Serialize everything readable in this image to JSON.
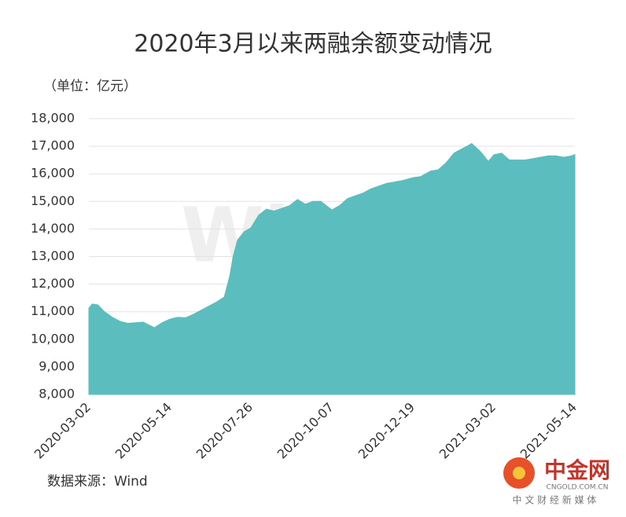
{
  "chart_data": {
    "type": "area",
    "title": "2020年3月以来两融余额变动情况",
    "unit_label": "（单位：亿元）",
    "source": "数据来源：Wind",
    "watermark": "Win.d",
    "logo": {
      "name": "中金网",
      "domain": "CNGOLD.COM.CN",
      "slogan": "中 文 财 经 新 媒 体"
    },
    "color": "#5bbdbd",
    "grid": true,
    "x": [
      "2020-03-02",
      "2020-03-05",
      "2020-03-10",
      "2020-03-16",
      "2020-03-23",
      "2020-03-30",
      "2020-04-06",
      "2020-04-13",
      "2020-04-20",
      "2020-04-30",
      "2020-05-07",
      "2020-05-14",
      "2020-05-21",
      "2020-05-28",
      "2020-06-04",
      "2020-06-11",
      "2020-06-18",
      "2020-06-25",
      "2020-07-02",
      "2020-07-07",
      "2020-07-10",
      "2020-07-14",
      "2020-07-20",
      "2020-07-26",
      "2020-08-02",
      "2020-08-09",
      "2020-08-16",
      "2020-08-23",
      "2020-08-30",
      "2020-09-06",
      "2020-09-13",
      "2020-09-20",
      "2020-09-27",
      "2020-10-07",
      "2020-10-14",
      "2020-10-21",
      "2020-10-28",
      "2020-11-04",
      "2020-11-11",
      "2020-11-18",
      "2020-11-25",
      "2020-12-02",
      "2020-12-09",
      "2020-12-19",
      "2020-12-26",
      "2021-01-04",
      "2021-01-11",
      "2021-01-18",
      "2021-01-25",
      "2021-02-01",
      "2021-02-08",
      "2021-02-10",
      "2021-02-18",
      "2021-02-25",
      "2021-03-02",
      "2021-03-09",
      "2021-03-16",
      "2021-03-23",
      "2021-03-30",
      "2021-04-06",
      "2021-04-13",
      "2021-04-20",
      "2021-04-27",
      "2021-05-04",
      "2021-05-11",
      "2021-05-14"
    ],
    "values": [
      11130,
      11280,
      11250,
      11000,
      10800,
      10650,
      10580,
      10600,
      10620,
      10420,
      10600,
      10730,
      10800,
      10780,
      10900,
      11050,
      11200,
      11350,
      11530,
      12300,
      13000,
      13600,
      13900,
      14040,
      14500,
      14720,
      14650,
      14750,
      14850,
      15070,
      14900,
      15000,
      15000,
      14690,
      14850,
      15100,
      15200,
      15300,
      15450,
      15550,
      15650,
      15700,
      15750,
      15860,
      15900,
      16100,
      16150,
      16400,
      16750,
      16900,
      17050,
      17100,
      16800,
      16450,
      16690,
      16750,
      16500,
      16500,
      16500,
      16550,
      16600,
      16650,
      16650,
      16600,
      16650,
      16700
    ],
    "xlim": [
      "2020-03-02",
      "2021-05-14"
    ],
    "xticks": [
      "2020-03-02",
      "2020-05-14",
      "2020-07-26",
      "2020-10-07",
      "2020-12-19",
      "2021-03-02",
      "2021-05-14"
    ],
    "ylim": [
      8000,
      18000
    ],
    "yticks": [
      {
        "value": 8000,
        "label": "8,000"
      },
      {
        "value": 9000,
        "label": "9,000"
      },
      {
        "value": 10000,
        "label": "10,000"
      },
      {
        "value": 11000,
        "label": "11,000"
      },
      {
        "value": 12000,
        "label": "12,000"
      },
      {
        "value": 13000,
        "label": "13,000"
      },
      {
        "value": 14000,
        "label": "14,000"
      },
      {
        "value": 15000,
        "label": "15,000"
      },
      {
        "value": 16000,
        "label": "16,000"
      },
      {
        "value": 17000,
        "label": "17,000"
      },
      {
        "value": 18000,
        "label": "18,000"
      }
    ]
  }
}
